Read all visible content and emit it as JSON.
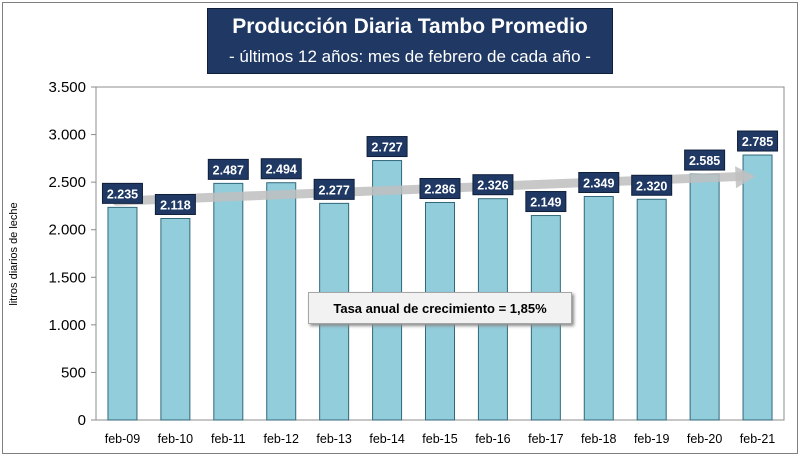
{
  "chart_data": {
    "type": "bar",
    "title": "Producción Diaria Tambo Promedio",
    "subtitle": "- últimos 12 años: mes de  febrero de cada año -",
    "ylabel": "litros diarios de leche",
    "ylim": [
      0,
      3500
    ],
    "yticks": [
      0,
      500,
      1000,
      1500,
      2000,
      2500,
      3000,
      3500
    ],
    "ytick_labels": [
      "0",
      "500",
      "1.000",
      "1.500",
      "2.000",
      "2.500",
      "3.000",
      "3.500"
    ],
    "categories": [
      "feb-09",
      "feb-10",
      "feb-11",
      "feb-12",
      "feb-13",
      "feb-14",
      "feb-15",
      "feb-16",
      "feb-17",
      "feb-18",
      "feb-19",
      "feb-20",
      "feb-21"
    ],
    "values": [
      2235,
      2118,
      2487,
      2494,
      2277,
      2727,
      2286,
      2326,
      2149,
      2349,
      2320,
      2585,
      2785
    ],
    "value_labels": [
      "2.235",
      "2.118",
      "2.487",
      "2.494",
      "2.277",
      "2.727",
      "2.286",
      "2.326",
      "2.149",
      "2.349",
      "2.320",
      "2.585",
      "2.785"
    ],
    "annotation": "Tasa anual de crecimiento = 1,85%",
    "trend": {
      "start": 2300,
      "end": 2560
    },
    "grid": false,
    "colors": {
      "bar": "#92cddc",
      "bar_edge": "#31687a",
      "label_bg": "#1f3864",
      "label_text": "#ffffff",
      "trend": "#bfbfbf",
      "title_bg": "#1f3864"
    }
  }
}
